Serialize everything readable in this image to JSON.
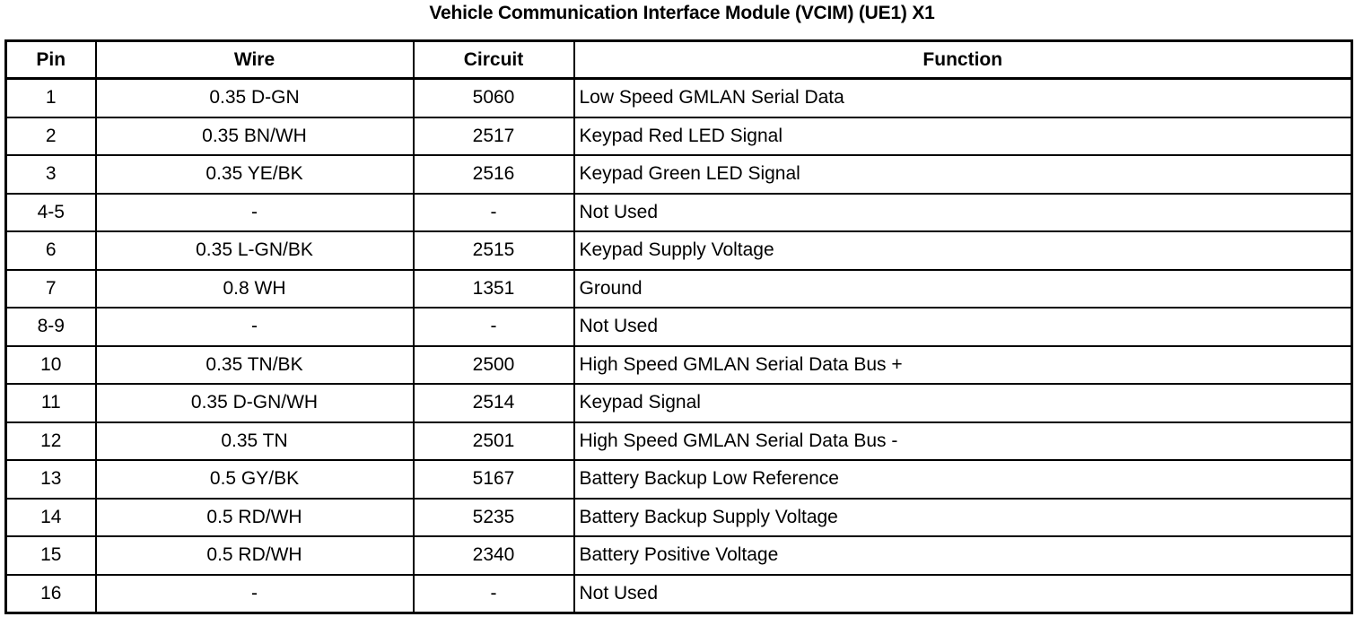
{
  "title": "Vehicle Communication Interface Module (VCIM) (UE1) X1",
  "table": {
    "headers": [
      "Pin",
      "Wire",
      "Circuit",
      "Function"
    ],
    "rows": [
      {
        "pin": "1",
        "wire": "0.35 D-GN",
        "circuit": "5060",
        "function": "Low Speed GMLAN Serial Data"
      },
      {
        "pin": "2",
        "wire": "0.35 BN/WH",
        "circuit": "2517",
        "function": "Keypad Red LED Signal"
      },
      {
        "pin": "3",
        "wire": "0.35 YE/BK",
        "circuit": "2516",
        "function": "Keypad Green LED Signal"
      },
      {
        "pin": "4-5",
        "wire": "-",
        "circuit": "-",
        "function": "Not Used"
      },
      {
        "pin": "6",
        "wire": "0.35 L-GN/BK",
        "circuit": "2515",
        "function": "Keypad Supply Voltage"
      },
      {
        "pin": "7",
        "wire": "0.8 WH",
        "circuit": "1351",
        "function": "Ground"
      },
      {
        "pin": "8-9",
        "wire": "-",
        "circuit": "-",
        "function": "Not Used"
      },
      {
        "pin": "10",
        "wire": "0.35 TN/BK",
        "circuit": "2500",
        "function": "High Speed GMLAN Serial Data Bus +"
      },
      {
        "pin": "11",
        "wire": "0.35 D-GN/WH",
        "circuit": "2514",
        "function": "Keypad Signal"
      },
      {
        "pin": "12",
        "wire": "0.35 TN",
        "circuit": "2501",
        "function": "High Speed GMLAN Serial Data Bus -"
      },
      {
        "pin": "13",
        "wire": "0.5 GY/BK",
        "circuit": "5167",
        "function": "Battery Backup Low Reference"
      },
      {
        "pin": "14",
        "wire": "0.5 RD/WH",
        "circuit": "5235",
        "function": "Battery Backup Supply Voltage"
      },
      {
        "pin": "15",
        "wire": "0.5 RD/WH",
        "circuit": "2340",
        "function": "Battery Positive Voltage"
      },
      {
        "pin": "16",
        "wire": "-",
        "circuit": "-",
        "function": "Not Used"
      }
    ]
  }
}
